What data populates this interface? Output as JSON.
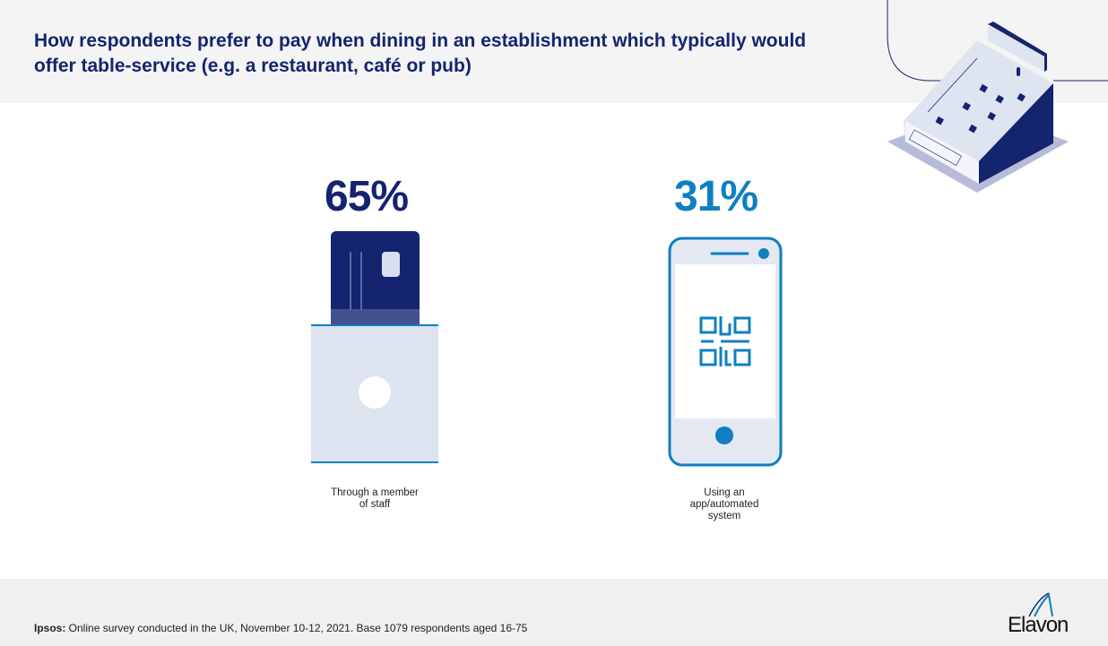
{
  "header": {
    "title": "How respondents prefer to pay when dining in an establishment which typically would offer table-service (e.g. a restaurant, café or pub)"
  },
  "chart_data": {
    "type": "table",
    "title": "How respondents prefer to pay when dining in an establishment which typically would offer table-service (e.g. a restaurant, café or pub)",
    "categories": [
      "Through a member of staff",
      "Using an app/automated system"
    ],
    "values": [
      65,
      31
    ],
    "value_labels": [
      "65%",
      "31%"
    ],
    "colors": [
      "#14246e",
      "#0f7fc1"
    ]
  },
  "labels": {
    "staff_line1": "Through a member",
    "staff_line2": "of staff",
    "app_line1": "Using an",
    "app_line2": "app/automated",
    "app_line3": "system"
  },
  "footer": {
    "source_prefix": "Ipsos:",
    "source_text": " Online survey conducted in the UK, November 10-12, 2021. Base 1079 respondents aged 16-75",
    "logo": "Elavon"
  }
}
